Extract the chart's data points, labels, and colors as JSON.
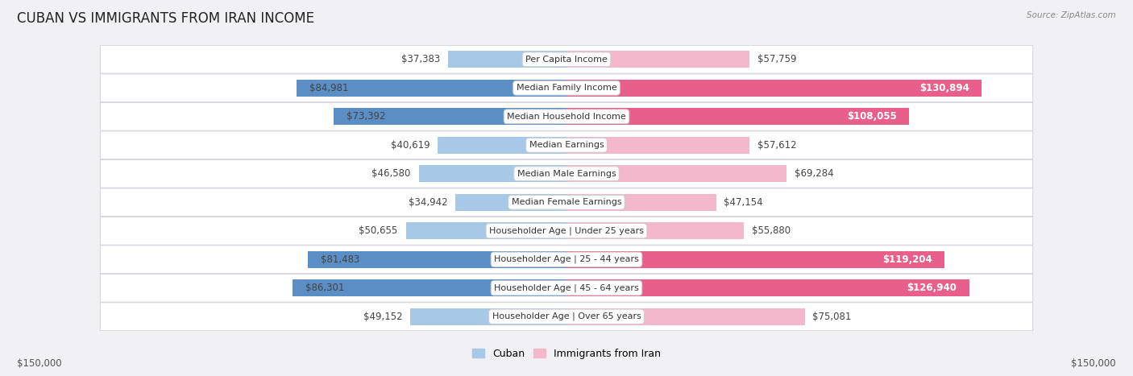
{
  "title": "CUBAN VS IMMIGRANTS FROM IRAN INCOME",
  "source": "Source: ZipAtlas.com",
  "categories": [
    "Per Capita Income",
    "Median Family Income",
    "Median Household Income",
    "Median Earnings",
    "Median Male Earnings",
    "Median Female Earnings",
    "Householder Age | Under 25 years",
    "Householder Age | 25 - 44 years",
    "Householder Age | 45 - 64 years",
    "Householder Age | Over 65 years"
  ],
  "cuban_values": [
    37383,
    84981,
    73392,
    40619,
    46580,
    34942,
    50655,
    81483,
    86301,
    49152
  ],
  "iran_values": [
    57759,
    130894,
    108055,
    57612,
    69284,
    47154,
    55880,
    119204,
    126940,
    75081
  ],
  "cuban_labels": [
    "$37,383",
    "$84,981",
    "$73,392",
    "$40,619",
    "$46,580",
    "$34,942",
    "$50,655",
    "$81,483",
    "$86,301",
    "$49,152"
  ],
  "iran_labels": [
    "$57,759",
    "$130,894",
    "$108,055",
    "$57,612",
    "$69,284",
    "$47,154",
    "$55,880",
    "$119,204",
    "$126,940",
    "$75,081"
  ],
  "cuban_color_light": "#a8c8e8",
  "cuban_color_dark": "#5b8ec4",
  "iran_color_light": "#f4b8cc",
  "iran_color_dark": "#e8608a",
  "max_value": 150000,
  "legend_cuban": "Cuban",
  "legend_iran": "Immigrants from Iran",
  "left_axis_label": "$150,000",
  "right_axis_label": "$150,000",
  "background_color": "#f0f0f5",
  "title_fontsize": 12,
  "label_fontsize": 8.5,
  "category_fontsize": 8.0,
  "cuban_dark_threshold": 65000,
  "iran_dark_threshold": 90000
}
